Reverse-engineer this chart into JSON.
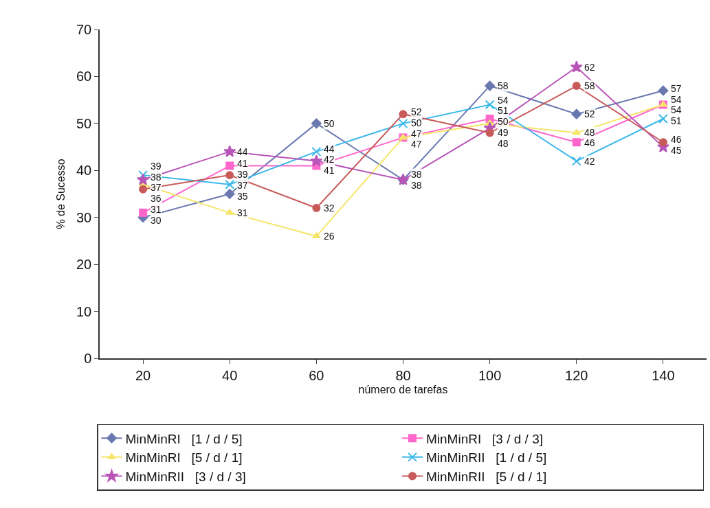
{
  "chart_data": {
    "type": "line",
    "xlabel": "número de tarefas",
    "ylabel": "% de Sucesso",
    "categories": [
      "20",
      "40",
      "60",
      "80",
      "100",
      "120",
      "140"
    ],
    "ylim": [
      0,
      70
    ],
    "yticks": [
      0,
      10,
      20,
      30,
      40,
      50,
      60,
      70
    ],
    "grid": false,
    "legend": "bottom",
    "data_labels": true,
    "line_style": "solid",
    "series": [
      {
        "name": "MinMinRI   [1 / d / 5]",
        "color": "#6a78b0",
        "marker": "diamond",
        "values": [
          30,
          35,
          50,
          38,
          58,
          52,
          57
        ]
      },
      {
        "name": "MinMinRI   [3 / d / 3]",
        "color": "#ff66cc",
        "marker": "square",
        "values": [
          31,
          41,
          41,
          47,
          51,
          46,
          54
        ]
      },
      {
        "name": "MinMinRI   [5 / d / 1]",
        "color": "#f5e66a",
        "marker": "triangle",
        "values": [
          37,
          31,
          26,
          47,
          50,
          48,
          54
        ]
      },
      {
        "name": "MinMinRII   [1 / d / 5]",
        "color": "#3ab8ea",
        "marker": "cross",
        "values": [
          39,
          37,
          44,
          50,
          54,
          42,
          51
        ]
      },
      {
        "name": "MinMinRII   [3 / d / 3]",
        "color": "#b855b8",
        "marker": "star",
        "values": [
          38,
          44,
          42,
          38,
          49,
          62,
          45
        ]
      },
      {
        "name": "MinMinRII   [5 / d / 1]",
        "color": "#c85a5a",
        "marker": "circle",
        "values": [
          36,
          39,
          32,
          52,
          48,
          58,
          46
        ]
      }
    ]
  }
}
